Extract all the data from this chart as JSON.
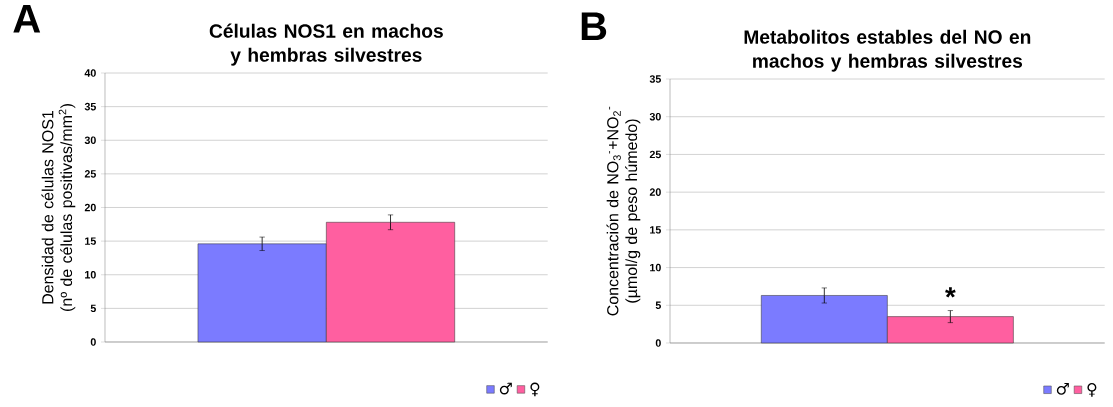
{
  "chart_data": [
    {
      "type": "bar",
      "title": "Células NOS1 en machos y hembras silvestres",
      "ylabel": "Densidad de células NOS1 (nº de células positivas/mm$^{2}$)",
      "categories": [
        null
      ],
      "series": [
        {
          "name": "♂",
          "color": "#7b7bff",
          "values": [
            14.6
          ],
          "errors": [
            1.0
          ]
        },
        {
          "name": "♀",
          "color": "#ff5fa0",
          "values": [
            17.8
          ],
          "errors": [
            1.1
          ]
        }
      ],
      "ylim": [
        0,
        40
      ],
      "yticks": [
        0,
        5,
        10,
        15,
        20,
        25,
        30,
        35,
        40
      ],
      "grid": "y",
      "legend": "bottom right",
      "annotations": [
        "A"
      ]
    },
    {
      "type": "bar",
      "title": "Metabolitos estables del NO en machos y hembras silvestres",
      "ylabel": "Concentración de NO$_{3}$$^{-}$+NO$_{2}$$^{-}$ (µmol/g de peso húmedo)",
      "categories": [
        null
      ],
      "series": [
        {
          "name": "♂",
          "color": "#7b7bff",
          "values": [
            6.3
          ],
          "errors": [
            1.0
          ]
        },
        {
          "name": "♀",
          "color": "#ff5fa0",
          "values": [
            3.5
          ],
          "errors": [
            0.8
          ]
        }
      ],
      "ylim": [
        0,
        35
      ],
      "yticks": [
        0,
        5,
        10,
        15,
        20,
        25,
        30,
        35
      ],
      "grid": "y",
      "legend": "bottom right",
      "annotations": [
        "B",
        "*"
      ]
    }
  ]
}
